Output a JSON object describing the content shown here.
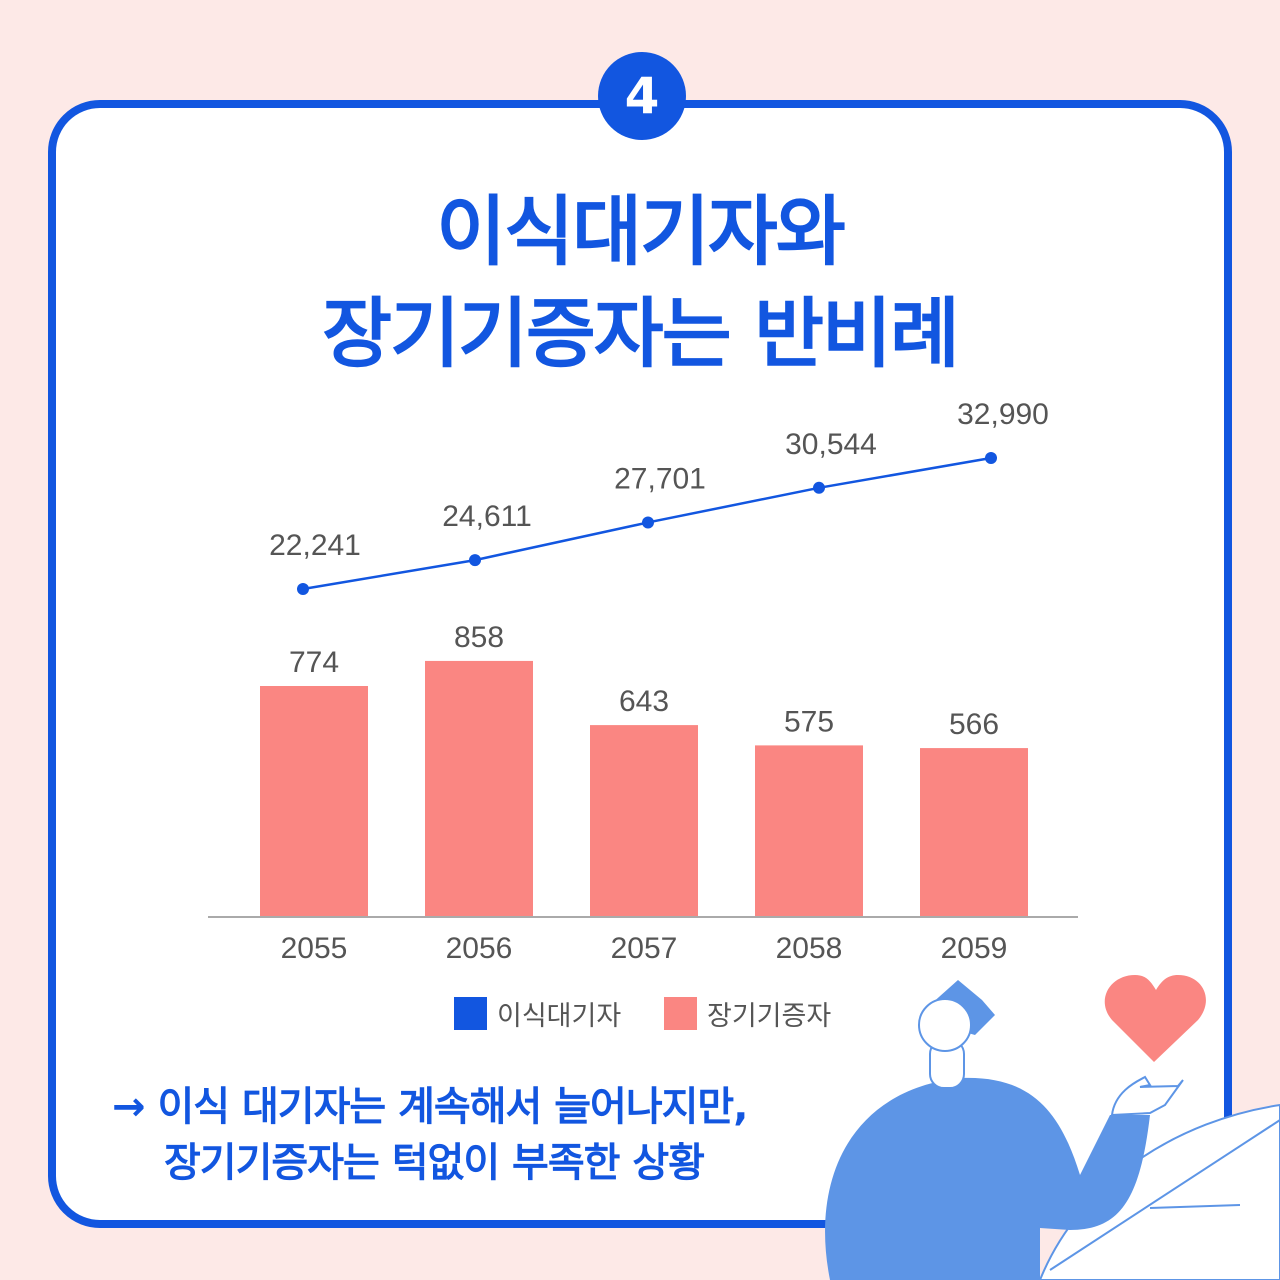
{
  "badge": "4",
  "title_line1": "이식대기자와",
  "title_line2": "장기기증자는 반비례",
  "chart_data": {
    "type": "bar+line",
    "categories": [
      "2055",
      "2056",
      "2057",
      "2058",
      "2059"
    ],
    "series": [
      {
        "name": "이식대기자",
        "type": "line",
        "values": [
          22241,
          24611,
          27701,
          30544,
          32990
        ],
        "labels": [
          "22,241",
          "24,611",
          "27,701",
          "30,544",
          "32,990"
        ],
        "color": "#1256e0"
      },
      {
        "name": "장기기증자",
        "type": "bar",
        "values": [
          774,
          858,
          643,
          575,
          566
        ],
        "labels": [
          "774",
          "858",
          "643",
          "575",
          "566"
        ],
        "color": "#fa8682"
      }
    ],
    "legend": "bottom",
    "grid": false
  },
  "note_line1": "→ 이식 대기자는 계속해서 늘어나지만,",
  "note_line2": "장기기증자는 턱없이 부족한 상황",
  "colors": {
    "accent": "#1256e0",
    "bar": "#fa8682",
    "background": "#fde9e7",
    "illustration": "#5d95e6"
  }
}
